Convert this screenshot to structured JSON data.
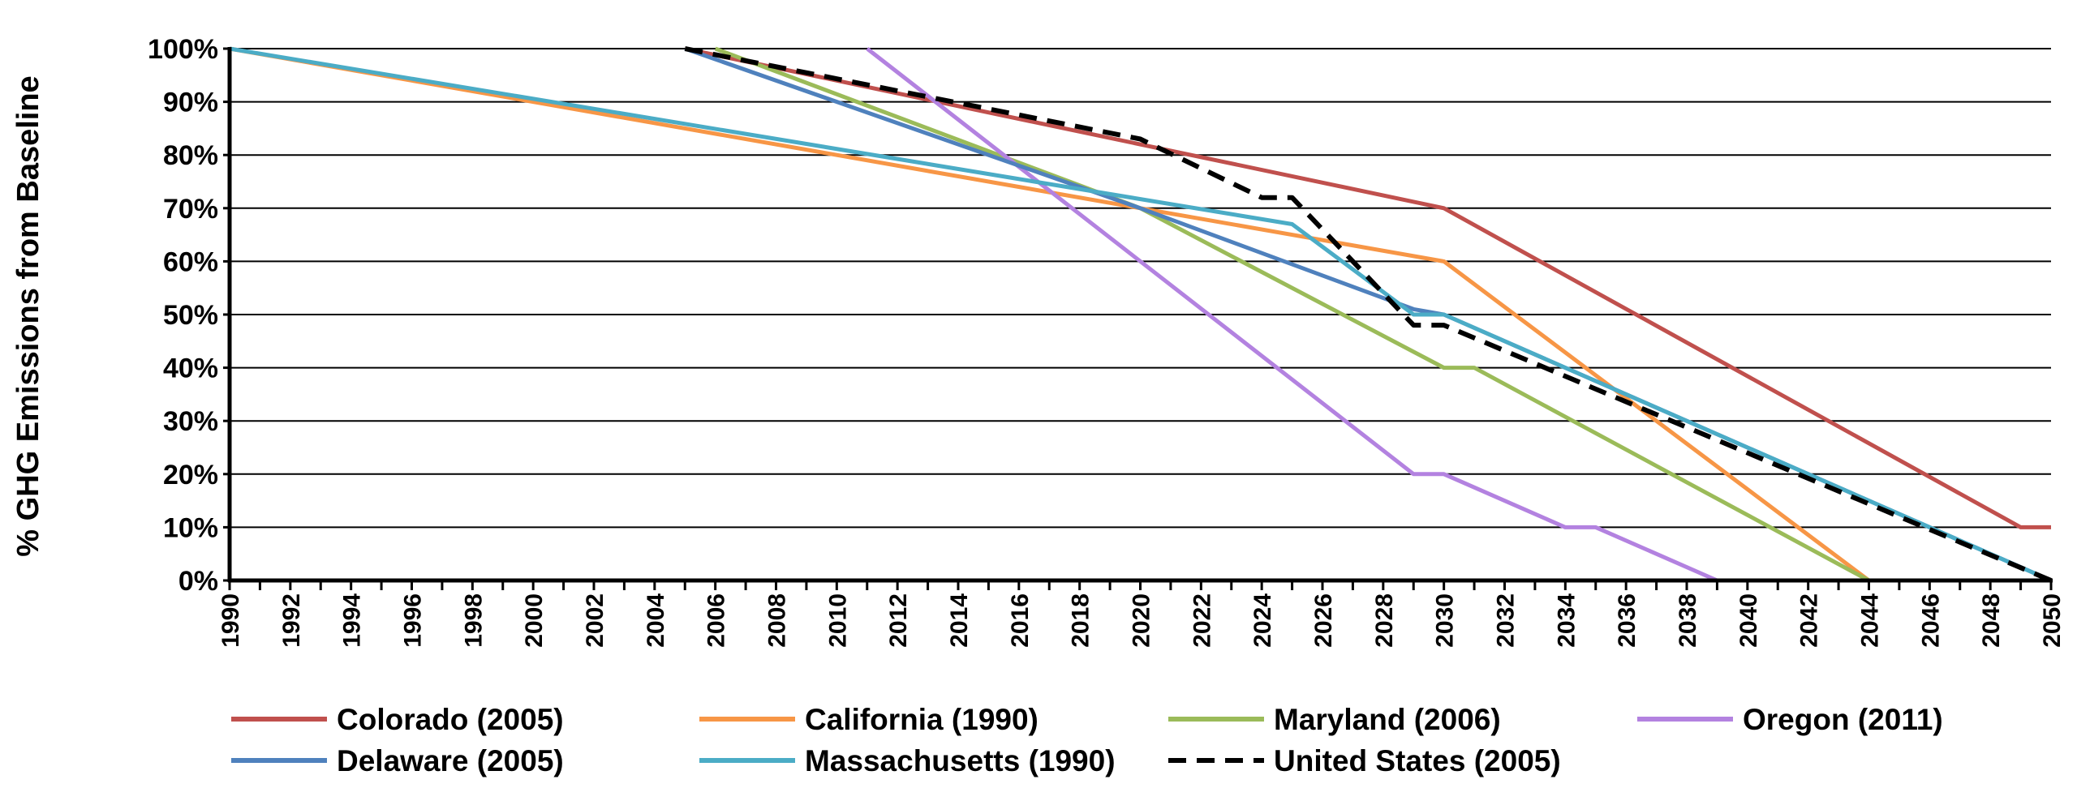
{
  "chart_data": {
    "type": "line",
    "title": "",
    "xlabel": "",
    "ylabel": "% GHG Emissions from Baseline",
    "xlim": [
      1990,
      2050
    ],
    "ylim": [
      0,
      100
    ],
    "x_ticks": [
      1990,
      1992,
      1994,
      1996,
      1998,
      2000,
      2002,
      2004,
      2006,
      2008,
      2010,
      2012,
      2014,
      2016,
      2018,
      2020,
      2022,
      2024,
      2026,
      2028,
      2030,
      2032,
      2034,
      2036,
      2038,
      2040,
      2042,
      2044,
      2046,
      2048,
      2050
    ],
    "y_ticks": [
      0,
      10,
      20,
      30,
      40,
      50,
      60,
      70,
      80,
      90,
      100
    ],
    "y_tick_labels": [
      "0%",
      "10%",
      "20%",
      "30%",
      "40%",
      "50%",
      "60%",
      "70%",
      "80%",
      "90%",
      "100%"
    ],
    "grid": "horizontal",
    "legend_position": "bottom",
    "series": [
      {
        "name": "Colorado (2005)",
        "color": "#c0504d",
        "dash": false,
        "points": [
          [
            2005,
            100
          ],
          [
            2030,
            70
          ],
          [
            2030,
            70
          ],
          [
            2049,
            10
          ],
          [
            2050,
            10
          ]
        ]
      },
      {
        "name": "California (1990)",
        "color": "#f79646",
        "dash": false,
        "points": [
          [
            1990,
            100
          ],
          [
            2020,
            70
          ],
          [
            2030,
            60
          ],
          [
            2044,
            0
          ]
        ]
      },
      {
        "name": "Maryland (2006)",
        "color": "#9bbb59",
        "dash": false,
        "points": [
          [
            2006,
            100
          ],
          [
            2020,
            70
          ],
          [
            2030,
            40
          ],
          [
            2031,
            40
          ],
          [
            2044,
            0
          ]
        ]
      },
      {
        "name": "Oregon (2011)",
        "color": "#b382e0",
        "dash": false,
        "points": [
          [
            2011,
            100
          ],
          [
            2029,
            20
          ],
          [
            2030,
            20
          ],
          [
            2034,
            10
          ],
          [
            2035,
            10
          ],
          [
            2039,
            0
          ],
          [
            2050,
            0
          ]
        ]
      },
      {
        "name": "Delaware (2005)",
        "color": "#4f81bd",
        "dash": false,
        "points": [
          [
            2005,
            100
          ],
          [
            2020,
            70
          ],
          [
            2029,
            51
          ],
          [
            2030,
            50
          ],
          [
            2050,
            0
          ]
        ]
      },
      {
        "name": "Massachusetts (1990)",
        "color": "#4bacc6",
        "dash": false,
        "points": [
          [
            1990,
            100
          ],
          [
            2025,
            67
          ],
          [
            2029,
            50
          ],
          [
            2030,
            50
          ],
          [
            2040,
            25
          ],
          [
            2050,
            0
          ]
        ]
      },
      {
        "name": "United States (2005)",
        "color": "#000000",
        "dash": true,
        "points": [
          [
            2005,
            100
          ],
          [
            2020,
            83
          ],
          [
            2024,
            72
          ],
          [
            2025,
            72
          ],
          [
            2029,
            48
          ],
          [
            2030,
            48
          ],
          [
            2050,
            0
          ]
        ]
      }
    ]
  }
}
